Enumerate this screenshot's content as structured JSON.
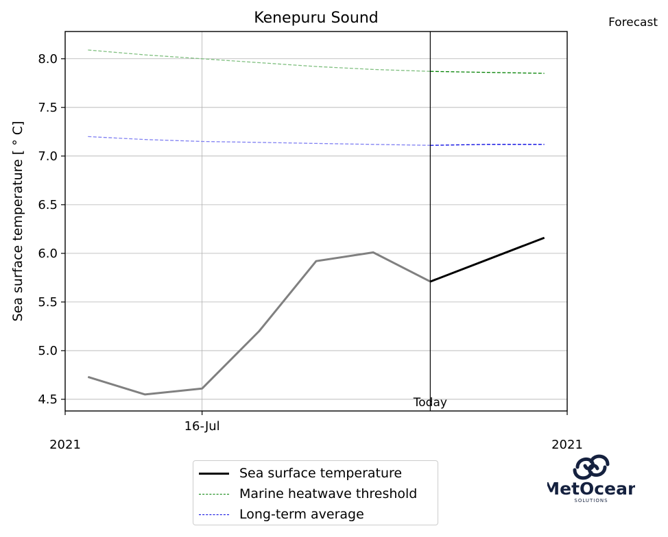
{
  "chart_data": {
    "type": "line",
    "title": "Kenepuru Sound",
    "corner_label": "Forecast",
    "ylabel": "Sea surface temperature [$^\\circ$C]",
    "ylabel_display": "Sea surface temperature [ ° C]",
    "ylim": [
      4.38,
      8.28
    ],
    "yticks": [
      4.5,
      5.0,
      5.5,
      6.0,
      6.5,
      7.0,
      7.5,
      8.0
    ],
    "ytick_labels": [
      "4.5",
      "5.0",
      "5.5",
      "6.0",
      "6.5",
      "7.0",
      "7.5",
      "8.0"
    ],
    "xlim": [
      -0.4,
      8.4
    ],
    "xticks": [
      {
        "x": -0.4,
        "label": "",
        "year": "2021"
      },
      {
        "x": 2.0,
        "label": "16-Jul",
        "year": ""
      },
      {
        "x": 8.4,
        "label": "",
        "year": "2021"
      }
    ],
    "grid": true,
    "today_x": 6.0,
    "today_label": "Today",
    "series": [
      {
        "name": "Sea surface temperature",
        "role": "observed",
        "color": "#808080",
        "style": "solid",
        "x": [
          0,
          1,
          2,
          3,
          4,
          5,
          6
        ],
        "values": [
          4.73,
          4.55,
          4.61,
          5.2,
          5.92,
          6.01,
          5.71
        ]
      },
      {
        "name": "Sea surface temperature",
        "role": "forecast",
        "color": "#000000",
        "style": "solid",
        "x": [
          6,
          8
        ],
        "values": [
          5.71,
          6.16
        ]
      },
      {
        "name": "Marine heatwave threshold",
        "role": "past",
        "color": "#7fbf7f",
        "style": "dashed",
        "x": [
          0,
          1,
          2,
          3,
          4,
          5,
          6
        ],
        "values": [
          8.09,
          8.04,
          8.0,
          7.96,
          7.92,
          7.89,
          7.87
        ]
      },
      {
        "name": "Marine heatwave threshold",
        "role": "forecast",
        "color": "#008000",
        "style": "dashed",
        "x": [
          6,
          7,
          8
        ],
        "values": [
          7.87,
          7.86,
          7.85
        ]
      },
      {
        "name": "Long-term average",
        "role": "past",
        "color": "#7f7ff2",
        "style": "dashed",
        "x": [
          0,
          1,
          2,
          3,
          4,
          5,
          6
        ],
        "values": [
          7.2,
          7.17,
          7.15,
          7.14,
          7.13,
          7.12,
          7.11
        ]
      },
      {
        "name": "Long-term average",
        "role": "forecast",
        "color": "#0000e0",
        "style": "dashed",
        "x": [
          6,
          7,
          8
        ],
        "values": [
          7.11,
          7.12,
          7.12
        ]
      }
    ],
    "legend": {
      "position": "bottom-center",
      "entries": [
        {
          "label": "Sea surface temperature",
          "color": "#000000",
          "style": "solid"
        },
        {
          "label": "Marine heatwave threshold",
          "color": "#008000",
          "style": "dashed"
        },
        {
          "label": "Long-term average",
          "color": "#0000e0",
          "style": "dashed"
        }
      ]
    }
  },
  "logo": {
    "name": "MetOcean",
    "tagline": "SOLUTIONS",
    "color": "#15213f"
  }
}
